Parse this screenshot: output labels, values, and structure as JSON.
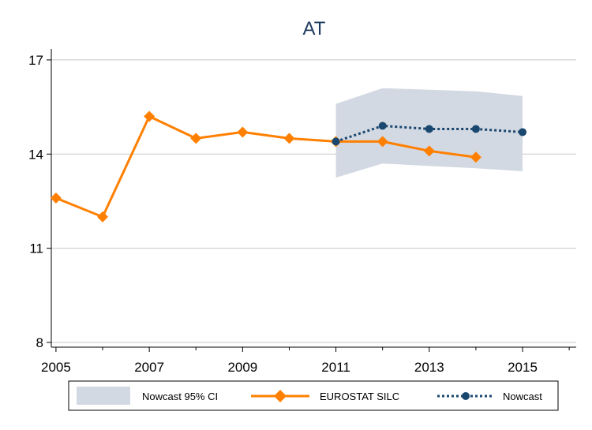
{
  "chart_data": {
    "type": "line",
    "title": "AT",
    "xlabel": "",
    "ylabel": "",
    "xlim": [
      2004.9,
      2016.15
    ],
    "ylim": [
      7.85,
      17.35
    ],
    "xticks": [
      2005,
      2007,
      2009,
      2011,
      2013,
      2015
    ],
    "yticks": [
      8,
      11,
      14,
      17
    ],
    "grid": true,
    "legend": "bottom",
    "series": [
      {
        "name": "EUROSTAT SILC",
        "style": "solid",
        "marker": "diamond",
        "color": "#ff8000",
        "x": [
          2005,
          2006,
          2007,
          2008,
          2009,
          2010,
          2011,
          2012,
          2013,
          2014
        ],
        "y": [
          12.6,
          12.0,
          15.2,
          14.5,
          14.7,
          14.5,
          14.4,
          14.4,
          14.1,
          13.9
        ]
      },
      {
        "name": "Nowcast",
        "style": "dotted",
        "marker": "circle",
        "color": "#1a476f",
        "x": [
          2011,
          2012,
          2013,
          2014,
          2015
        ],
        "y": [
          14.4,
          14.9,
          14.8,
          14.8,
          14.7
        ]
      }
    ],
    "band": {
      "name": "Nowcast 95% CI",
      "color": "#d3d9e2",
      "x": [
        2011,
        2012,
        2013,
        2014,
        2015
      ],
      "lower": [
        13.25,
        13.7,
        13.62,
        13.55,
        13.45
      ],
      "upper": [
        15.6,
        16.1,
        16.05,
        16.0,
        15.85
      ]
    }
  }
}
